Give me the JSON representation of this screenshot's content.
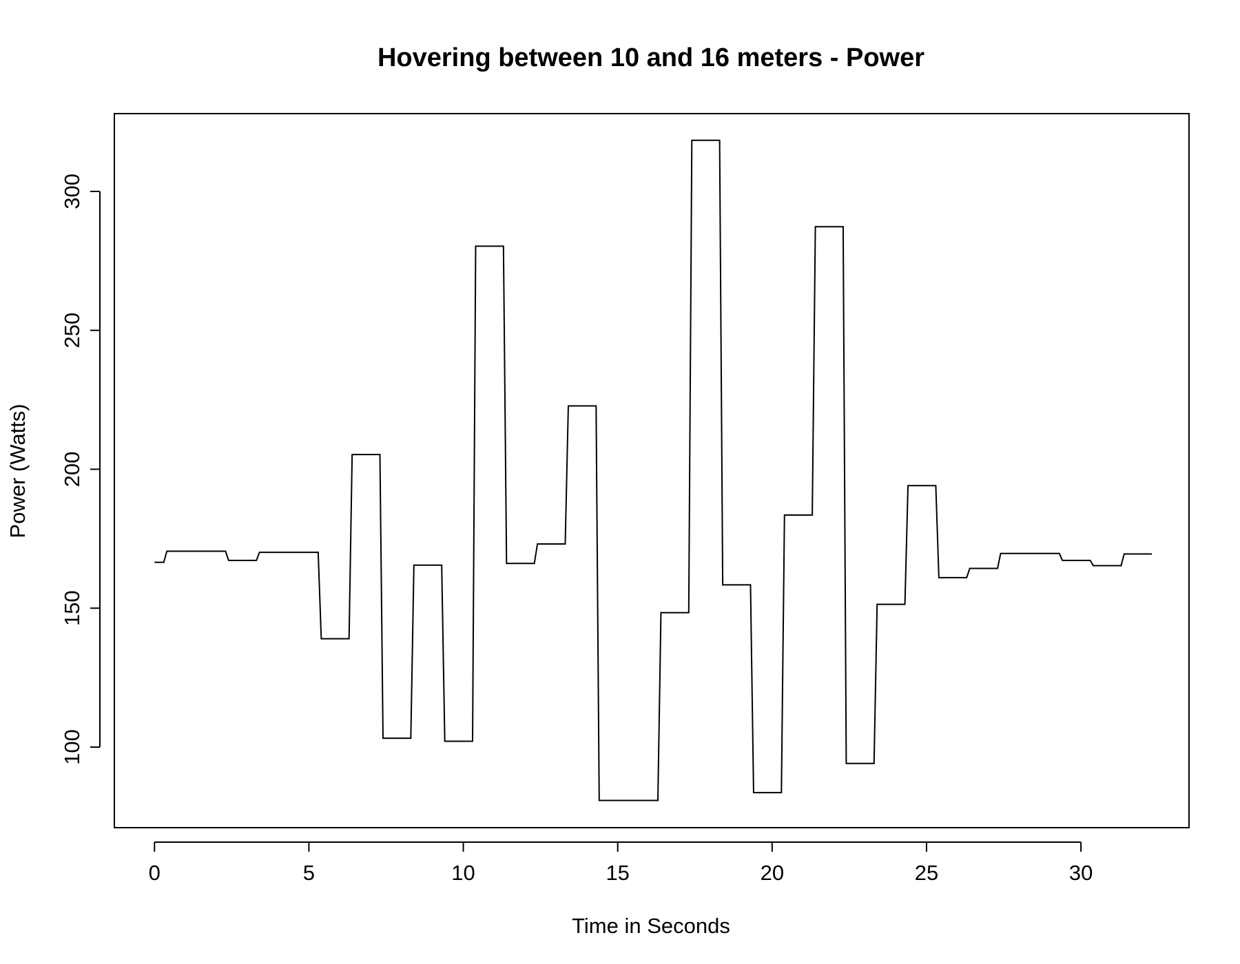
{
  "chart_data": {
    "type": "line",
    "title": "Hovering between 10 and 16 meters - Power",
    "xlabel": "Time in Seconds",
    "ylabel": "Power (Watts)",
    "xlim": [
      -1.3,
      33.5
    ],
    "ylim": [
      71,
      328
    ],
    "x_ticks": [
      0,
      5,
      10,
      15,
      20,
      25,
      30
    ],
    "y_ticks": [
      100,
      150,
      200,
      250,
      300
    ],
    "grid": false,
    "line_color": "#000000",
    "series": [
      {
        "x": [
          0,
          0.3,
          0.4,
          2.3,
          2.4,
          3.3,
          3.4,
          5.3,
          5.4,
          6.3,
          6.4,
          7.3,
          7.4,
          8.3,
          8.4,
          9.3,
          9.4,
          10.3,
          10.4,
          11.3,
          11.4,
          12.3,
          12.4,
          13.3,
          13.4,
          14.3,
          14.4,
          16.3,
          16.4,
          17.3,
          17.4,
          18.3,
          18.4,
          19.3,
          19.4,
          20.3,
          20.4,
          21.3,
          21.4,
          22.3,
          22.4,
          23.3,
          23.4,
          24.3,
          24.4,
          25.3,
          25.4,
          26.3,
          26.4,
          27.3,
          27.4,
          29.3,
          29.4,
          30.3,
          30.4,
          31.3,
          31.4,
          32.3
        ],
        "y": [
          166.5,
          166.5,
          170.5,
          170.5,
          167.2,
          167.2,
          170.1,
          170.1,
          139,
          139,
          205.3,
          205.3,
          103.2,
          103.2,
          165.5,
          165.5,
          102.1,
          102.1,
          280.3,
          280.3,
          166.1,
          166.1,
          173.1,
          173.1,
          222.8,
          222.8,
          80.8,
          80.8,
          148.4,
          148.4,
          318.4,
          318.4,
          158.4,
          158.4,
          83.6,
          83.6,
          183.5,
          183.5,
          287.3,
          287.3,
          94.1,
          94.1,
          151.4,
          151.4,
          194.1,
          194.1,
          161,
          161,
          164.3,
          164.3,
          169.7,
          169.7,
          167.2,
          167.2,
          165.3,
          165.3,
          169.5,
          169.5
        ]
      }
    ]
  }
}
